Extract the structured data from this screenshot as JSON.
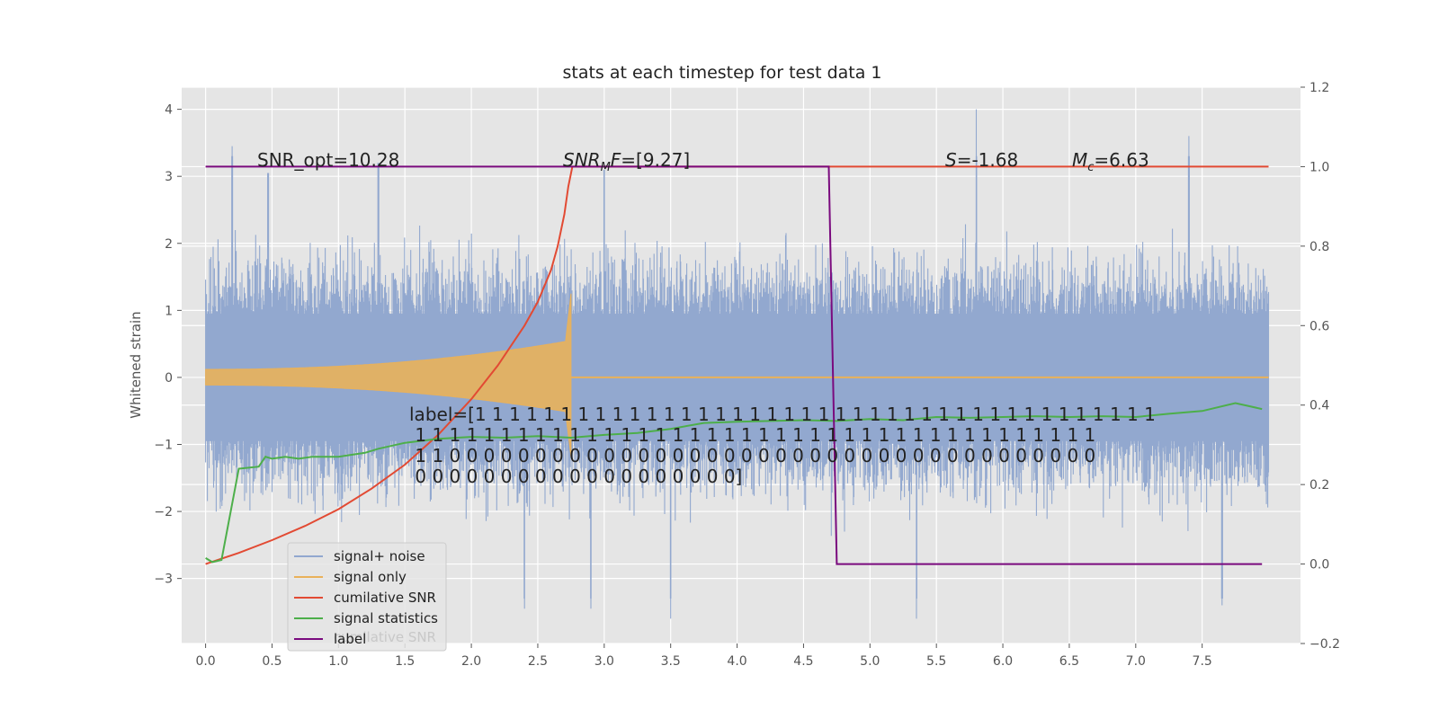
{
  "chart_data": {
    "type": "line",
    "title": "stats at each timestep for test data 1",
    "ylabel": "Whitened strain",
    "xlim": [
      -0.18,
      8.24
    ],
    "ylim": [
      -3.97,
      4.33
    ],
    "y2lim": [
      -0.2,
      1.2
    ],
    "grid": true,
    "legend_position": "lower-left",
    "x_ticks": [
      "0.0",
      "0.5",
      "1.0",
      "1.5",
      "2.0",
      "2.5",
      "3.0",
      "3.5",
      "4.0",
      "4.5",
      "5.0",
      "5.5",
      "6.0",
      "6.5",
      "7.0",
      "7.5"
    ],
    "y_ticks": [
      "−3",
      "−2",
      "−1",
      "0",
      "1",
      "2",
      "3",
      "4"
    ],
    "y2_ticks": [
      "−0.2",
      "0.0",
      "0.2",
      "0.4",
      "0.6",
      "0.8",
      "1.0",
      "1.2"
    ],
    "colors": {
      "signal_noise": "#92a8cf",
      "signal_only": "#e9b15a",
      "cumulative_snr": "#e24a33",
      "signal_statistics": "#4daf4a",
      "label": "#7a0a7e",
      "plot_bg": "#e5e5e5",
      "grid": "#ffffff"
    },
    "annotations": {
      "snr_opt": "SNR_opt=10.28",
      "snr_mf": "=[9.27]",
      "snr_mf_prefix": "SNR",
      "snr_mf_sub": "M",
      "snr_mf_mid": "F",
      "s_val": "=-1.68",
      "s_sym": "S",
      "mc_val": "=6.63",
      "mc_sym": "M",
      "mc_sub": "c",
      "label_lines": [
        "label=[1 1 1 1 1 1 1 1 1 1 1 1 1 1 1 1 1 1 1 1 1 1 1 1 1 1 1 1 1 1 1 1 1 1 1 1 1 1 1 1",
        " 1 1 1 1 1 1 1 1 1 1 1 1 1 1 1 1 1 1 1 1 1 1 1 1 1 1 1 1 1 1 1 1 1 1 1 1 1 1 1 1",
        " 1 1 0 0 0 0 0 0 0 0 0 0 0 0 0 0 0 0 0 0 0 0 0 0 0 0 0 0 0 0 0 0 0 0 0 0 0 0 0 0",
        " 0 0 0 0 0 0 0 0 0 0 0 0 0 0 0 0 0 0 0]"
      ]
    },
    "series": [
      {
        "name": "signal+ noise",
        "axis": "left",
        "x_range": [
          0.0,
          8.0
        ],
        "envelope_typical": 1.7,
        "peaks": [
          [
            0.2,
            3.45
          ],
          [
            0.47,
            3.05
          ],
          [
            1.3,
            3.2
          ],
          [
            3.0,
            3.1
          ],
          [
            5.8,
            4.0
          ],
          [
            7.4,
            3.6
          ],
          [
            3.5,
            -3.6
          ],
          [
            5.35,
            -3.6
          ],
          [
            7.65,
            -3.4
          ],
          [
            2.9,
            -3.45
          ],
          [
            2.4,
            -3.45
          ]
        ]
      },
      {
        "name": "signal only",
        "axis": "left",
        "x_range": [
          0.0,
          8.0
        ],
        "chirp_end": 2.75,
        "amplitude_start": 0.12,
        "amplitude_end": 1.25
      },
      {
        "name": "cumilative SNR",
        "axis": "right",
        "x": [
          0.0,
          0.25,
          0.5,
          0.75,
          1.0,
          1.25,
          1.5,
          1.75,
          2.0,
          2.2,
          2.4,
          2.5,
          2.6,
          2.65,
          2.7,
          2.73,
          2.76,
          8.0
        ],
        "y": [
          0.0,
          0.028,
          0.06,
          0.096,
          0.138,
          0.19,
          0.25,
          0.325,
          0.415,
          0.5,
          0.6,
          0.66,
          0.74,
          0.8,
          0.88,
          0.95,
          1.0,
          1.0
        ]
      },
      {
        "name": "signal statistics",
        "axis": "right",
        "x": [
          0.0,
          0.05,
          0.12,
          0.25,
          0.4,
          0.45,
          0.5,
          0.6,
          0.7,
          0.8,
          1.0,
          1.2,
          1.3,
          1.5,
          1.75,
          2.0,
          2.25,
          2.5,
          2.75,
          3.0,
          3.25,
          3.5,
          3.75,
          4.0,
          4.25,
          4.5,
          4.75,
          5.0,
          5.25,
          5.5,
          5.75,
          6.0,
          6.25,
          6.5,
          6.75,
          7.0,
          7.25,
          7.5,
          7.75,
          7.95
        ],
        "y": [
          0.015,
          0.005,
          0.01,
          0.24,
          0.245,
          0.27,
          0.265,
          0.27,
          0.265,
          0.27,
          0.27,
          0.28,
          0.29,
          0.305,
          0.315,
          0.32,
          0.318,
          0.322,
          0.318,
          0.325,
          0.33,
          0.34,
          0.355,
          0.358,
          0.36,
          0.362,
          0.36,
          0.365,
          0.362,
          0.37,
          0.368,
          0.37,
          0.372,
          0.37,
          0.372,
          0.37,
          0.378,
          0.385,
          0.405,
          0.39
        ]
      },
      {
        "name": "label",
        "axis": "right",
        "x": [
          0.0,
          4.69,
          4.75,
          7.95
        ],
        "y": [
          1.0,
          1.0,
          0.0,
          0.0
        ]
      }
    ],
    "legend": [
      "signal+ noise",
      "signal only",
      "cumilative SNR",
      "signal statistics",
      "label"
    ],
    "legend_ghost_text": "cumilative SNR"
  }
}
